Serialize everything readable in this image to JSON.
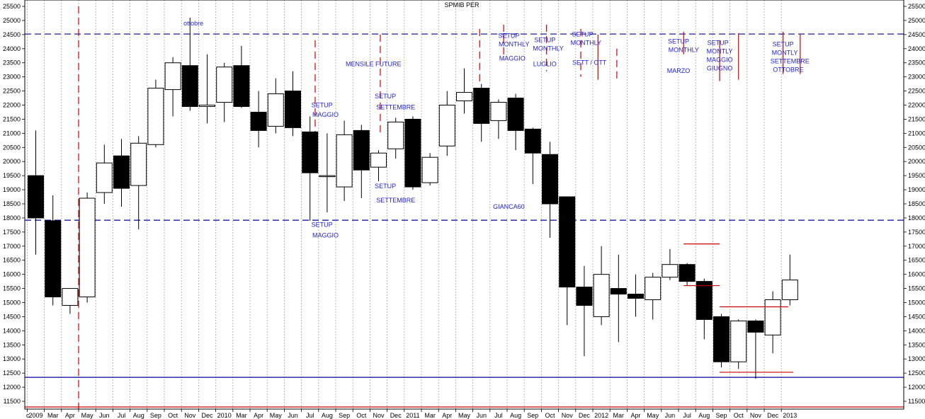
{
  "chart_data": {
    "type": "candlestick",
    "title": "SPMIB PER",
    "y_range": [
      11500,
      25500
    ],
    "y_ticks": [
      11500,
      12000,
      12500,
      13000,
      13500,
      14000,
      14500,
      15000,
      15500,
      16000,
      16500,
      17000,
      17500,
      18000,
      18500,
      19000,
      19500,
      20000,
      20500,
      21000,
      21500,
      22000,
      22500,
      23000,
      23500,
      24000,
      24500,
      25000,
      25500
    ],
    "x_tick_labels": [
      "c",
      "2009",
      "Mar",
      "Apr",
      "May",
      "Jun",
      "Jul",
      "Aug",
      "Sep",
      "Oct",
      "Nov",
      "Dec",
      "2010",
      "Mar",
      "Apr",
      "May",
      "Jun",
      "Jul",
      "Aug",
      "Sep",
      "Oct",
      "Nov",
      "Dec",
      "2011",
      "Mar",
      "Apr",
      "May",
      "Jun",
      "Jul",
      "Aug",
      "Sep",
      "Oct",
      "Nov",
      "Dec",
      "2012",
      "Mar",
      "Apr",
      "May",
      "Jun",
      "Jul",
      "Aug",
      "Sep",
      "Oct",
      "Nov",
      "Dec",
      "2013"
    ],
    "candles": [
      {
        "o": 19500,
        "h": 21100,
        "l": 16700,
        "c": 18000
      },
      {
        "o": 17900,
        "h": 18800,
        "l": 14900,
        "c": 15200
      },
      {
        "o": 14900,
        "h": 15500,
        "l": 14600,
        "c": 15500
      },
      {
        "o": 15200,
        "h": 18900,
        "l": 15000,
        "c": 18700
      },
      {
        "o": 18900,
        "h": 20600,
        "l": 18500,
        "c": 19950
      },
      {
        "o": 20200,
        "h": 20800,
        "l": 18400,
        "c": 19050
      },
      {
        "o": 19150,
        "h": 20900,
        "l": 17600,
        "c": 20650
      },
      {
        "o": 20600,
        "h": 22900,
        "l": 20500,
        "c": 22600
      },
      {
        "o": 22550,
        "h": 23700,
        "l": 21600,
        "c": 23500
      },
      {
        "o": 23400,
        "h": 25100,
        "l": 21800,
        "c": 21950
      },
      {
        "o": 21950,
        "h": 23800,
        "l": 21350,
        "c": 22000
      },
      {
        "o": 22100,
        "h": 23500,
        "l": 21400,
        "c": 23350
      },
      {
        "o": 23400,
        "h": 24100,
        "l": 21900,
        "c": 21950
      },
      {
        "o": 21750,
        "h": 22500,
        "l": 20500,
        "c": 21100
      },
      {
        "o": 21250,
        "h": 22950,
        "l": 21000,
        "c": 22400
      },
      {
        "o": 22500,
        "h": 23200,
        "l": 20900,
        "c": 21200
      },
      {
        "o": 21050,
        "h": 21600,
        "l": 17900,
        "c": 19600
      },
      {
        "o": 19500,
        "h": 21000,
        "l": 18200,
        "c": 19500
      },
      {
        "o": 19100,
        "h": 21450,
        "l": 18600,
        "c": 20950
      },
      {
        "o": 21100,
        "h": 21300,
        "l": 18700,
        "c": 19700
      },
      {
        "o": 19800,
        "h": 20400,
        "l": 19300,
        "c": 20300
      },
      {
        "o": 20450,
        "h": 21550,
        "l": 20100,
        "c": 21400
      },
      {
        "o": 21500,
        "h": 21600,
        "l": 19000,
        "c": 19100
      },
      {
        "o": 19250,
        "h": 20300,
        "l": 19150,
        "c": 20150
      },
      {
        "o": 20550,
        "h": 22500,
        "l": 20200,
        "c": 22000
      },
      {
        "o": 22150,
        "h": 23300,
        "l": 21700,
        "c": 22450
      },
      {
        "o": 22600,
        "h": 22750,
        "l": 20700,
        "c": 21350
      },
      {
        "o": 21450,
        "h": 22200,
        "l": 20800,
        "c": 22100
      },
      {
        "o": 22250,
        "h": 22400,
        "l": 20400,
        "c": 21100
      },
      {
        "o": 21150,
        "h": 21200,
        "l": 19200,
        "c": 20300
      },
      {
        "o": 20250,
        "h": 20700,
        "l": 17300,
        "c": 18500
      },
      {
        "o": 18750,
        "h": 18750,
        "l": 14200,
        "c": 15550
      },
      {
        "o": 15550,
        "h": 16300,
        "l": 13100,
        "c": 14900
      },
      {
        "o": 14500,
        "h": 17000,
        "l": 14200,
        "c": 16000
      },
      {
        "o": 15500,
        "h": 16700,
        "l": 13600,
        "c": 15300
      },
      {
        "o": 15300,
        "h": 16000,
        "l": 14500,
        "c": 15150
      },
      {
        "o": 15100,
        "h": 16050,
        "l": 14400,
        "c": 15900
      },
      {
        "o": 15900,
        "h": 16900,
        "l": 15800,
        "c": 16350
      },
      {
        "o": 16350,
        "h": 16400,
        "l": 15600,
        "c": 15750
      },
      {
        "o": 15750,
        "h": 15850,
        "l": 13700,
        "c": 14400
      },
      {
        "o": 14500,
        "h": 14600,
        "l": 12700,
        "c": 12900
      },
      {
        "o": 12900,
        "h": 14400,
        "l": 12650,
        "c": 14350
      },
      {
        "o": 14350,
        "h": 14400,
        "l": 12300,
        "c": 13950
      },
      {
        "o": 13850,
        "h": 15400,
        "l": 13200,
        "c": 15100
      },
      {
        "o": 15100,
        "h": 16700,
        "l": 14900,
        "c": 15800
      }
    ],
    "horizontal_lines": [
      {
        "value": 24520,
        "color": "#0000a0",
        "style": "dashed"
      },
      {
        "value": 17920,
        "color": "#0000a0",
        "style": "dashed"
      },
      {
        "value": 12350,
        "color": "#0000a0",
        "style": "solid"
      },
      {
        "value": 11300,
        "color": "#cc0000",
        "style": "solid"
      }
    ],
    "vertical_markers": [
      {
        "slot": 2.5,
        "from": 25500,
        "to": 11000,
        "color": "#cc0000",
        "style": "dashed"
      },
      {
        "slot": 16.3,
        "from": 24300,
        "to": 19500,
        "color": "#cc0000",
        "style": "dashed"
      },
      {
        "slot": 20.1,
        "from": 24500,
        "to": 21000,
        "color": "#cc0000",
        "style": "dashed"
      },
      {
        "slot": 25.9,
        "from": 24700,
        "to": 22700,
        "color": "#cc0000",
        "style": "dashed"
      },
      {
        "slot": 27.3,
        "from": 24850,
        "to": 23600,
        "color": "#cc0000",
        "style": "dashed"
      },
      {
        "slot": 29.8,
        "from": 24850,
        "to": 23200,
        "color": "#cc0000",
        "style": "dashed"
      },
      {
        "slot": 31.8,
        "from": 24700,
        "to": 23000,
        "color": "#cc0000",
        "style": "dashed"
      },
      {
        "slot": 32.8,
        "from": 24500,
        "to": 22900,
        "color": "#cc0000",
        "style": "solid"
      },
      {
        "slot": 33.9,
        "from": 24000,
        "to": 22900,
        "color": "#cc0000",
        "style": "dashed"
      },
      {
        "slot": 37.8,
        "from": 24600,
        "to": 23800,
        "color": "#cc0000",
        "style": "solid"
      },
      {
        "slot": 39.9,
        "from": 24300,
        "to": 22850,
        "color": "#cc0000",
        "style": "solid"
      },
      {
        "slot": 41.0,
        "from": 24550,
        "to": 22900,
        "color": "#cc0000",
        "style": "solid"
      },
      {
        "slot": 43.6,
        "from": 24600,
        "to": 23100,
        "color": "#cc0000",
        "style": "solid"
      },
      {
        "slot": 44.6,
        "from": 24500,
        "to": 23100,
        "color": "#cc0000",
        "style": "solid"
      }
    ],
    "red_segments": [
      {
        "x0": 37.8,
        "x1": 39.9,
        "y": 17080
      },
      {
        "x0": 37.8,
        "x1": 39.9,
        "y": 15600
      },
      {
        "x0": 39.9,
        "x1": 43.9,
        "y": 14850
      },
      {
        "x0": 39.9,
        "x1": 44.2,
        "y": 12530
      }
    ],
    "annotations": [
      {
        "text": "ottobre",
        "slot": 9.2,
        "y": 24820
      },
      {
        "text": "SETUP",
        "slot": 16.7,
        "y": 21920
      },
      {
        "text": "MAGGIO",
        "slot": 16.9,
        "y": 21580
      },
      {
        "text": "MENSILE FUTURE",
        "slot": 19.7,
        "y": 23380
      },
      {
        "text": "SETUP",
        "slot": 20.4,
        "y": 22240
      },
      {
        "text": "SETTEMBRE",
        "slot": 21.0,
        "y": 21850
      },
      {
        "text": "SETUP",
        "slot": 20.4,
        "y": 19050
      },
      {
        "text": "SETTEMBRE",
        "slot": 21.0,
        "y": 18550
      },
      {
        "text": "SETUP",
        "slot": 16.7,
        "y": 17680
      },
      {
        "text": "MAGGIO",
        "slot": 16.9,
        "y": 17310
      },
      {
        "text": "GIANCA60",
        "slot": 27.6,
        "y": 18330
      },
      {
        "text": "SETUP",
        "slot": 27.6,
        "y": 24380
      },
      {
        "text": "MONTHLY",
        "slot": 27.9,
        "y": 24080
      },
      {
        "text": "MAGGIO",
        "slot": 27.8,
        "y": 23580
      },
      {
        "text": "SETUP",
        "slot": 29.7,
        "y": 24230
      },
      {
        "text": "MONTHLY",
        "slot": 29.9,
        "y": 23930
      },
      {
        "text": "LUGLIO",
        "slot": 29.7,
        "y": 23380
      },
      {
        "text": "SETUP",
        "slot": 31.9,
        "y": 24430
      },
      {
        "text": "MONTHLY",
        "slot": 32.1,
        "y": 24130
      },
      {
        "text": "SETT  / OTT",
        "slot": 32.3,
        "y": 23430
      },
      {
        "text": "SETUP",
        "slot": 37.5,
        "y": 24180
      },
      {
        "text": "MONTHLY",
        "slot": 37.8,
        "y": 23880
      },
      {
        "text": "MARZO",
        "slot": 37.5,
        "y": 23140
      },
      {
        "text": "SETUP",
        "slot": 39.8,
        "y": 24130
      },
      {
        "text": "MONTLY",
        "slot": 39.9,
        "y": 23830
      },
      {
        "text": "MAGGIO",
        "slot": 39.9,
        "y": 23530
      },
      {
        "text": "GIUGNO",
        "slot": 39.9,
        "y": 23230
      },
      {
        "text": "SETUP",
        "slot": 43.6,
        "y": 24080
      },
      {
        "text": "MONTLY",
        "slot": 43.7,
        "y": 23780
      },
      {
        "text": "SETTEMBRE",
        "slot": 44.0,
        "y": 23480
      },
      {
        "text": "OTTOBRE",
        "slot": 43.9,
        "y": 23180
      }
    ],
    "grid": true
  },
  "colors": {
    "bull_fill": "#ffffff",
    "bear_fill": "#000000",
    "annotation": "#1f1fd6",
    "grid": "#9a9a9a"
  }
}
